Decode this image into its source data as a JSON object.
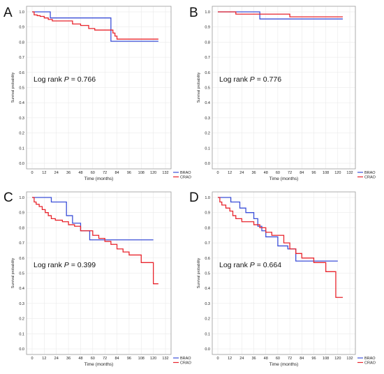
{
  "chart_data": [
    {
      "type": "line",
      "panel_label": "A",
      "xlabel": "Time (months)",
      "ylabel": "Survival probability",
      "xticks": [
        0,
        12,
        24,
        36,
        48,
        60,
        72,
        84,
        96,
        108,
        120,
        132
      ],
      "yticks": [
        0.0,
        0.1,
        0.2,
        0.3,
        0.4,
        0.5,
        0.6,
        0.7,
        0.8,
        0.9,
        1.0
      ],
      "xlim": [
        0,
        132
      ],
      "ylim": [
        0,
        1.0
      ],
      "grid": true,
      "legend_position": "bottom-right",
      "annotation": {
        "prefix": "Log rank ",
        "p_symbol": "P",
        "p_value": " = 0.766"
      },
      "series": [
        {
          "name": "BRAO",
          "color": "#3b4fd8",
          "x": [
            0,
            3,
            18,
            76,
            78,
            125
          ],
          "y": [
            1.0,
            1.0,
            0.96,
            0.96,
            0.806,
            0.806
          ]
        },
        {
          "name": "CRAO",
          "color": "#e8242c",
          "x": [
            0,
            2,
            5,
            8,
            12,
            16,
            20,
            40,
            48,
            56,
            62,
            74,
            80,
            82,
            84,
            125
          ],
          "y": [
            1.0,
            0.98,
            0.975,
            0.97,
            0.96,
            0.95,
            0.94,
            0.92,
            0.91,
            0.89,
            0.88,
            0.88,
            0.86,
            0.84,
            0.82,
            0.82
          ]
        }
      ]
    },
    {
      "type": "line",
      "panel_label": "B",
      "xlabel": "Time (months)",
      "ylabel": "Survival probability",
      "xticks": [
        0,
        12,
        24,
        36,
        48,
        60,
        72,
        84,
        96,
        108,
        120,
        132
      ],
      "yticks": [
        0.0,
        0.1,
        0.2,
        0.3,
        0.4,
        0.5,
        0.6,
        0.7,
        0.8,
        0.9,
        1.0
      ],
      "xlim": [
        0,
        132
      ],
      "ylim": [
        0,
        1.0
      ],
      "grid": true,
      "legend_position": "bottom-right",
      "annotation": {
        "prefix": "Log rank ",
        "p_symbol": "P",
        "p_value": " = 0.776"
      },
      "series": [
        {
          "name": "BRAO",
          "color": "#3b4fd8",
          "x": [
            0,
            42,
            125
          ],
          "y": [
            1.0,
            0.953,
            0.953
          ]
        },
        {
          "name": "CRAO",
          "color": "#e8242c",
          "x": [
            0,
            18,
            72,
            125
          ],
          "y": [
            1.0,
            0.985,
            0.967,
            0.967
          ]
        }
      ]
    },
    {
      "type": "line",
      "panel_label": "C",
      "xlabel": "Time (months)",
      "ylabel": "Survival probability",
      "xticks": [
        0,
        12,
        24,
        36,
        48,
        60,
        72,
        84,
        96,
        108,
        120,
        132
      ],
      "yticks": [
        0.0,
        0.1,
        0.2,
        0.3,
        0.4,
        0.5,
        0.6,
        0.7,
        0.8,
        0.9,
        1.0
      ],
      "xlim": [
        0,
        132
      ],
      "ylim": [
        0,
        1.0
      ],
      "grid": true,
      "legend_position": "bottom-right",
      "annotation": {
        "prefix": "Log rank ",
        "p_symbol": "P",
        "p_value": " = 0.399"
      },
      "series": [
        {
          "name": "BRAO",
          "color": "#3b4fd8",
          "x": [
            0,
            19,
            31,
            34,
            40,
            48,
            57,
            120
          ],
          "y": [
            1.0,
            0.97,
            0.97,
            0.88,
            0.83,
            0.78,
            0.72,
            0.72
          ]
        },
        {
          "name": "CRAO",
          "color": "#e8242c",
          "x": [
            0,
            2,
            4,
            7,
            10,
            13,
            16,
            19,
            23,
            30,
            36,
            42,
            48,
            60,
            66,
            72,
            78,
            84,
            90,
            96,
            108,
            120,
            125
          ],
          "y": [
            1.0,
            0.97,
            0.955,
            0.94,
            0.92,
            0.9,
            0.88,
            0.86,
            0.85,
            0.84,
            0.82,
            0.81,
            0.78,
            0.75,
            0.73,
            0.71,
            0.69,
            0.66,
            0.64,
            0.62,
            0.57,
            0.43,
            0.43
          ]
        }
      ]
    },
    {
      "type": "line",
      "panel_label": "D",
      "xlabel": "Time (months)",
      "ylabel": "Survival probability",
      "xticks": [
        0,
        12,
        24,
        36,
        48,
        60,
        72,
        84,
        96,
        108,
        120,
        132
      ],
      "yticks": [
        0.0,
        0.1,
        0.2,
        0.3,
        0.4,
        0.5,
        0.6,
        0.7,
        0.8,
        0.9,
        1.0
      ],
      "xlim": [
        0,
        132
      ],
      "ylim": [
        0,
        1.0
      ],
      "grid": true,
      "legend_position": "bottom-right",
      "annotation": {
        "prefix": "Log rank ",
        "p_symbol": "P",
        "p_value": " = 0.664"
      },
      "series": [
        {
          "name": "BRAO",
          "color": "#3b4fd8",
          "x": [
            0,
            13,
            22,
            28,
            36,
            40,
            44,
            48,
            60,
            70,
            78,
            120
          ],
          "y": [
            1.0,
            0.97,
            0.93,
            0.9,
            0.86,
            0.81,
            0.78,
            0.74,
            0.68,
            0.66,
            0.58,
            0.58
          ]
        },
        {
          "name": "CRAO",
          "color": "#e8242c",
          "x": [
            0,
            2,
            4,
            8,
            12,
            15,
            18,
            24,
            36,
            42,
            48,
            54,
            66,
            72,
            78,
            84,
            96,
            108,
            118,
            125
          ],
          "y": [
            1.0,
            0.97,
            0.95,
            0.93,
            0.91,
            0.88,
            0.86,
            0.84,
            0.82,
            0.8,
            0.77,
            0.75,
            0.7,
            0.66,
            0.63,
            0.6,
            0.57,
            0.51,
            0.34,
            0.34
          ]
        }
      ]
    }
  ]
}
